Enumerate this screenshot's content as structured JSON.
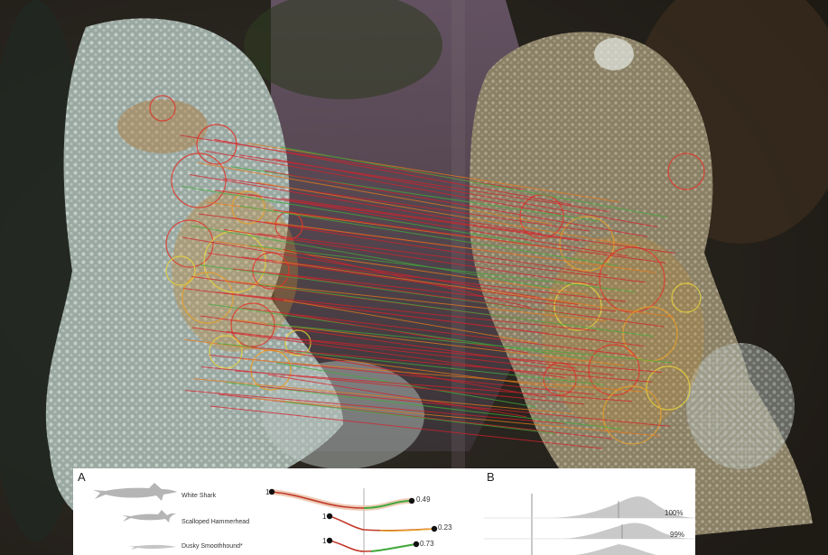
{
  "figure": {
    "panel_a_letter": "A",
    "panel_b_letter": "B",
    "species": [
      {
        "name": "White Shark",
        "start": "1",
        "end_value": "0.49"
      },
      {
        "name": "Scalloped Hammerhead",
        "start": "1",
        "end_value": "0.23"
      },
      {
        "name": "Dusky Smoothhound*",
        "start": "1",
        "end_value": "0.73"
      }
    ],
    "percentages": [
      "100%",
      "99%"
    ],
    "colors": {
      "match_line_red": "#d8202a",
      "match_line_orange": "#e87a1a",
      "match_line_green": "#3fae3a",
      "keypoint_yellow": "#e8d23a",
      "silhouette": "#b5b5b5",
      "density": "#c9c9c9"
    }
  }
}
